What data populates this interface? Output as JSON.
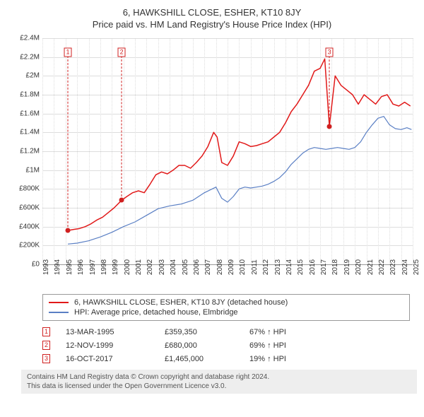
{
  "title_line1": "6, HAWKSHILL CLOSE, ESHER, KT10 8JY",
  "title_line2": "Price paid vs. HM Land Registry's House Price Index (HPI)",
  "chart": {
    "type": "line",
    "background_color": "#ffffff",
    "grid_color": "#dddddd",
    "baseline_color": "#999999",
    "x": {
      "min": 1993,
      "max": 2025,
      "ticks": [
        1993,
        1994,
        1995,
        1996,
        1997,
        1998,
        1999,
        2000,
        2001,
        2002,
        2003,
        2004,
        2005,
        2006,
        2007,
        2008,
        2009,
        2010,
        2011,
        2012,
        2013,
        2014,
        2015,
        2016,
        2017,
        2018,
        2019,
        2020,
        2021,
        2022,
        2023,
        2024,
        2025
      ],
      "tick_labels": [
        "1993",
        "1994",
        "1995",
        "1996",
        "1997",
        "1998",
        "1999",
        "2000",
        "2001",
        "2002",
        "2003",
        "2004",
        "2005",
        "2006",
        "2007",
        "2008",
        "2009",
        "2010",
        "2011",
        "2012",
        "2013",
        "2014",
        "2015",
        "2016",
        "2017",
        "2018",
        "2019",
        "2020",
        "2021",
        "2022",
        "2023",
        "2024",
        "2025"
      ],
      "label_fontsize": 10,
      "label_rotation": -90
    },
    "y": {
      "min": 0,
      "max": 2400000,
      "tick_step": 200000,
      "tick_labels": [
        "£0",
        "£200K",
        "£400K",
        "£600K",
        "£800K",
        "£1M",
        "£1.2M",
        "£1.4M",
        "£1.6M",
        "£1.8M",
        "£2M",
        "£2.2M",
        "£2.4M"
      ],
      "label_fontsize": 10
    },
    "series": [
      {
        "name": "property",
        "label": "6, HAWKSHILL CLOSE, ESHER, KT10 8JY (detached house)",
        "color": "#e11919",
        "line_width": 1.5,
        "points": [
          [
            1995.2,
            359350
          ],
          [
            1995.7,
            370000
          ],
          [
            1996.2,
            380000
          ],
          [
            1996.7,
            400000
          ],
          [
            1997.2,
            430000
          ],
          [
            1997.7,
            470000
          ],
          [
            1998.2,
            500000
          ],
          [
            1998.7,
            550000
          ],
          [
            1999.2,
            600000
          ],
          [
            1999.85,
            680000
          ],
          [
            2000.3,
            720000
          ],
          [
            2000.8,
            760000
          ],
          [
            2001.3,
            780000
          ],
          [
            2001.8,
            760000
          ],
          [
            2002.3,
            850000
          ],
          [
            2002.8,
            950000
          ],
          [
            2003.3,
            980000
          ],
          [
            2003.8,
            960000
          ],
          [
            2004.3,
            1000000
          ],
          [
            2004.8,
            1050000
          ],
          [
            2005.3,
            1050000
          ],
          [
            2005.8,
            1020000
          ],
          [
            2006.3,
            1080000
          ],
          [
            2006.8,
            1150000
          ],
          [
            2007.3,
            1250000
          ],
          [
            2007.8,
            1400000
          ],
          [
            2008.1,
            1350000
          ],
          [
            2008.5,
            1080000
          ],
          [
            2009.0,
            1050000
          ],
          [
            2009.5,
            1150000
          ],
          [
            2010.0,
            1300000
          ],
          [
            2010.5,
            1280000
          ],
          [
            2011.0,
            1250000
          ],
          [
            2011.5,
            1260000
          ],
          [
            2012.0,
            1280000
          ],
          [
            2012.5,
            1300000
          ],
          [
            2013.0,
            1350000
          ],
          [
            2013.5,
            1400000
          ],
          [
            2014.0,
            1500000
          ],
          [
            2014.5,
            1620000
          ],
          [
            2015.0,
            1700000
          ],
          [
            2015.5,
            1800000
          ],
          [
            2016.0,
            1900000
          ],
          [
            2016.5,
            2050000
          ],
          [
            2017.0,
            2080000
          ],
          [
            2017.4,
            2180000
          ],
          [
            2017.8,
            1465000
          ],
          [
            2018.3,
            2000000
          ],
          [
            2018.8,
            1900000
          ],
          [
            2019.3,
            1850000
          ],
          [
            2019.8,
            1800000
          ],
          [
            2020.3,
            1700000
          ],
          [
            2020.8,
            1800000
          ],
          [
            2021.3,
            1750000
          ],
          [
            2021.8,
            1700000
          ],
          [
            2022.3,
            1780000
          ],
          [
            2022.8,
            1800000
          ],
          [
            2023.3,
            1700000
          ],
          [
            2023.8,
            1680000
          ],
          [
            2024.3,
            1720000
          ],
          [
            2024.8,
            1680000
          ]
        ]
      },
      {
        "name": "hpi",
        "label": "HPI: Average price, detached house, Elmbridge",
        "color": "#5a7fc4",
        "line_width": 1.2,
        "points": [
          [
            1995.2,
            215000
          ],
          [
            1996.0,
            225000
          ],
          [
            1997.0,
            250000
          ],
          [
            1998.0,
            290000
          ],
          [
            1999.0,
            340000
          ],
          [
            2000.0,
            400000
          ],
          [
            2001.0,
            450000
          ],
          [
            2002.0,
            520000
          ],
          [
            2003.0,
            590000
          ],
          [
            2004.0,
            620000
          ],
          [
            2005.0,
            640000
          ],
          [
            2006.0,
            680000
          ],
          [
            2007.0,
            760000
          ],
          [
            2008.0,
            820000
          ],
          [
            2008.5,
            700000
          ],
          [
            2009.0,
            660000
          ],
          [
            2009.5,
            720000
          ],
          [
            2010.0,
            800000
          ],
          [
            2010.5,
            820000
          ],
          [
            2011.0,
            810000
          ],
          [
            2011.5,
            820000
          ],
          [
            2012.0,
            830000
          ],
          [
            2012.5,
            850000
          ],
          [
            2013.0,
            880000
          ],
          [
            2013.5,
            920000
          ],
          [
            2014.0,
            980000
          ],
          [
            2014.5,
            1060000
          ],
          [
            2015.0,
            1120000
          ],
          [
            2015.5,
            1180000
          ],
          [
            2016.0,
            1220000
          ],
          [
            2016.5,
            1240000
          ],
          [
            2017.0,
            1230000
          ],
          [
            2017.5,
            1220000
          ],
          [
            2018.0,
            1230000
          ],
          [
            2018.5,
            1240000
          ],
          [
            2019.0,
            1230000
          ],
          [
            2019.5,
            1220000
          ],
          [
            2020.0,
            1240000
          ],
          [
            2020.5,
            1300000
          ],
          [
            2021.0,
            1400000
          ],
          [
            2021.5,
            1480000
          ],
          [
            2022.0,
            1550000
          ],
          [
            2022.5,
            1570000
          ],
          [
            2023.0,
            1480000
          ],
          [
            2023.5,
            1440000
          ],
          [
            2024.0,
            1430000
          ],
          [
            2024.5,
            1450000
          ],
          [
            2024.9,
            1430000
          ]
        ]
      }
    ],
    "markers": [
      {
        "n": "1",
        "x": 1995.2,
        "y": 359350,
        "box_y": 2250000
      },
      {
        "n": "2",
        "x": 1999.85,
        "y": 680000,
        "box_y": 2250000
      },
      {
        "n": "3",
        "x": 2017.8,
        "y": 1465000,
        "box_y": 2250000
      }
    ]
  },
  "legend": {
    "items": [
      {
        "color": "#e11919",
        "label": "6, HAWKSHILL CLOSE, ESHER, KT10 8JY (detached house)"
      },
      {
        "color": "#5a7fc4",
        "label": "HPI: Average price, detached house, Elmbridge"
      }
    ]
  },
  "sales": [
    {
      "n": "1",
      "date": "13-MAR-1995",
      "price": "£359,350",
      "pct": "67% ↑ HPI"
    },
    {
      "n": "2",
      "date": "12-NOV-1999",
      "price": "£680,000",
      "pct": "69% ↑ HPI"
    },
    {
      "n": "3",
      "date": "16-OCT-2017",
      "price": "£1,465,000",
      "pct": "19% ↑ HPI"
    }
  ],
  "attribution": {
    "line1": "Contains HM Land Registry data © Crown copyright and database right 2024.",
    "line2": "This data is licensed under the Open Government Licence v3.0."
  }
}
